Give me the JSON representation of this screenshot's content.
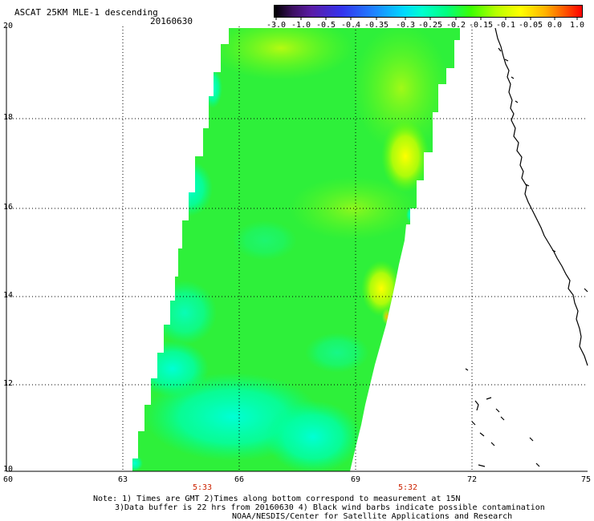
{
  "header": {
    "title": "ASCAT 25KM MLE-1 descending",
    "date": "20160630"
  },
  "colorbar": {
    "ticks": [
      "-3.0",
      "-1.0",
      "-0.5",
      "-0.4",
      "-0.35",
      "-0.3",
      "-0.25",
      "-0.2",
      "-0.15",
      "-0.1",
      "-0.05",
      "0.0",
      "1.0"
    ]
  },
  "axes": {
    "y_labels": [
      "20",
      "18",
      "16",
      "14",
      "12",
      "10"
    ],
    "x_labels": [
      "60",
      "63",
      "66",
      "69",
      "72",
      "75"
    ],
    "times": [
      "5:33",
      "5:32"
    ]
  },
  "notes": {
    "line1": "Note: 1) Times are GMT 2)Times along bottom correspond to measurement at 15N",
    "line2": "3)Data buffer is 22 hrs from 20160630 4) Black wind barbs indicate possible contamination",
    "line3": "NOAA/NESDIS/Center for Satellite Applications and Research"
  },
  "colors": {
    "field_main": "#22ee44",
    "field_cyan": "#00ffcc",
    "field_yellow": "#eeff00",
    "field_orange": "#ffaa00",
    "coastline": "#000000"
  }
}
